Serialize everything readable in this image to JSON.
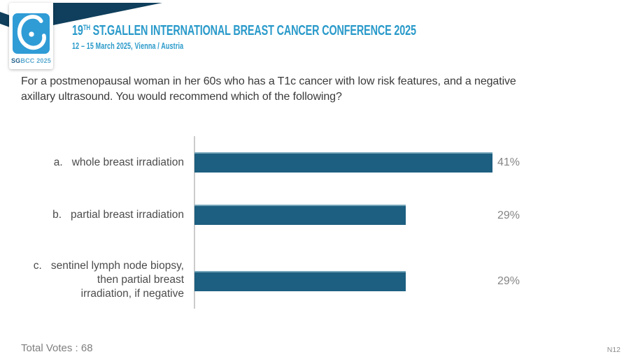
{
  "logo": {
    "text_primary": "SG",
    "text_secondary": "BCC 2025",
    "mark_color": "#2f9cd6",
    "icon": "stylized-drop"
  },
  "header": {
    "title_number": "19",
    "title_superscript": "TH",
    "title_rest": "ST.GALLEN INTERNATIONAL BREAST CANCER CONFERENCE 2025",
    "subtitle": "12 – 15 March 2025, Vienna / Austria",
    "accent_color": "#2a9aca",
    "banner_color": "#0f3f5c"
  },
  "question": {
    "lines": [
      "For a postmenopausal woman in her 60s who has a T1c cancer with low risk features, and a negative",
      "axillary ultrasound. You would recommend which of the following?"
    ]
  },
  "chart_data": {
    "type": "bar",
    "orientation": "horizontal",
    "title": "",
    "categories": [
      "a. whole breast irradiation",
      "b. partial breast irradiation",
      "c. sentinel lymph node biopsy, then partial breast irradiation, if negative"
    ],
    "values": [
      41,
      29,
      29
    ],
    "value_labels": [
      "41%",
      "29%",
      "29%"
    ],
    "options": [
      {
        "prefix": "a.",
        "label_lines": [
          "whole breast irradiation"
        ],
        "value": 41,
        "value_label": "41%"
      },
      {
        "prefix": "b.",
        "label_lines": [
          "partial breast irradiation"
        ],
        "value": 29,
        "value_label": "29%"
      },
      {
        "prefix": "c.",
        "label_lines": [
          "sentinel lymph node biopsy,",
          "then partial breast",
          "irradiation, if negative"
        ],
        "value": 29,
        "value_label": "29%"
      }
    ],
    "bar_color": "#1d5f80",
    "axis_color": "#cbcbcb",
    "label_color": "#4b4b4b",
    "value_label_color": "#858585",
    "xlim": [
      0,
      41
    ],
    "grid": false,
    "legend": false
  },
  "footer": {
    "total_votes": "Total Votes : 68",
    "slide_code": "N12"
  }
}
